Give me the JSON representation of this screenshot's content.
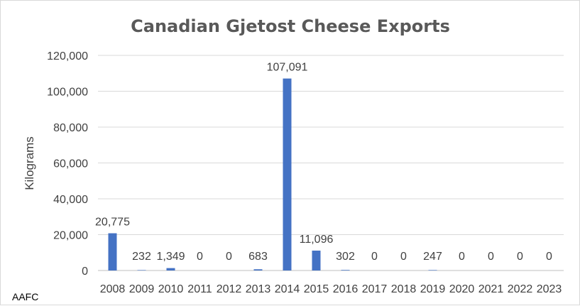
{
  "chart_data": {
    "type": "bar",
    "title": "Canadian Gjetost Cheese Exports",
    "xlabel": "",
    "ylabel": "Kilograms",
    "ylim": [
      0,
      120000
    ],
    "yticks": [
      0,
      20000,
      40000,
      60000,
      80000,
      100000,
      120000
    ],
    "ytick_labels": [
      "0",
      "20,000",
      "40,000",
      "60,000",
      "80,000",
      "100,000",
      "120,000"
    ],
    "grid": true,
    "legend": "none",
    "bar_color": "#4472c4",
    "categories": [
      "2008",
      "2009",
      "2010",
      "2011",
      "2012",
      "2013",
      "2014",
      "2015",
      "2016",
      "2017",
      "2018",
      "2019",
      "2020",
      "2021",
      "2022",
      "2023"
    ],
    "values": [
      20775,
      232,
      1349,
      0,
      0,
      683,
      107091,
      11096,
      302,
      0,
      0,
      247,
      0,
      0,
      0,
      0
    ],
    "data_labels": [
      "20,775",
      "232",
      "1,349",
      "0",
      "0",
      "683",
      "107,091",
      "11,096",
      "302",
      "0",
      "0",
      "247",
      "0",
      "0",
      "0",
      "0"
    ]
  },
  "source_label": "AAFC"
}
